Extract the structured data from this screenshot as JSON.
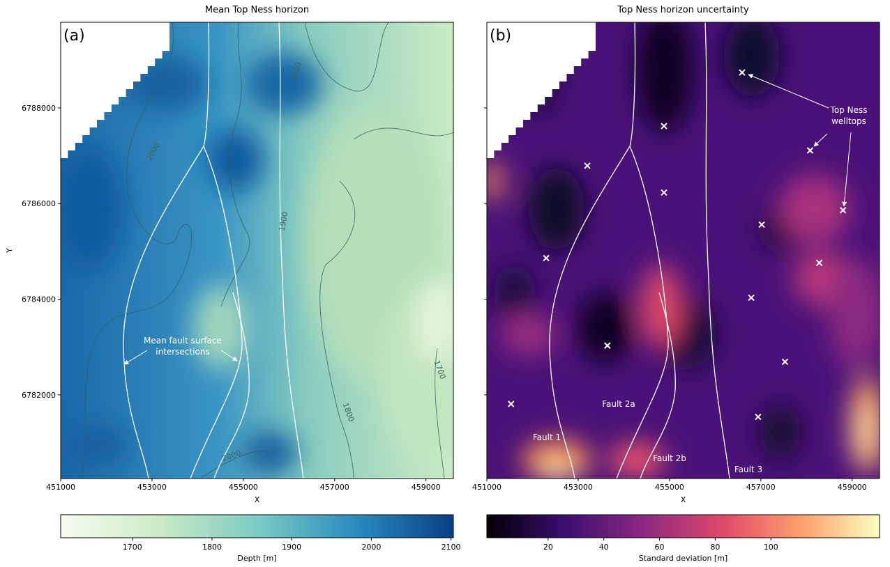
{
  "chart_data": [
    {
      "type": "heatmap",
      "title": "Mean Top Ness horizon",
      "panel_label": "(a)",
      "xlabel": "X",
      "ylabel": "Y",
      "xlim": [
        451000,
        459600
      ],
      "xticks": [
        451000,
        453000,
        455000,
        457000,
        459000
      ],
      "ylim": [
        6780250,
        6789790
      ],
      "yticks": [
        6782000,
        6784000,
        6786000,
        6788000
      ],
      "colorbar": {
        "label": "Depth [m]",
        "lim": [
          1610,
          2103
        ],
        "ticks": [
          1700,
          1800,
          1900,
          2000,
          2100
        ]
      },
      "contour_labels": [
        2000,
        2000,
        1900,
        2000,
        1800,
        1700
      ],
      "annotation": [
        "Mean fault surface",
        "intersections"
      ]
    },
    {
      "type": "heatmap",
      "title": "Top Ness horizon uncertainty",
      "panel_label": "(b)",
      "xlabel": "X",
      "xlim": [
        451000,
        459600
      ],
      "xticks": [
        451000,
        453000,
        455000,
        457000,
        459000
      ],
      "ylim": [
        6780250,
        6789790
      ],
      "yticks": [
        6782000,
        6784000,
        6786000,
        6788000
      ],
      "colorbar": {
        "label": "Standard deviation [m]",
        "lim": [
          -2,
          139
        ],
        "ticks": [
          20,
          40,
          60,
          80,
          100
        ]
      },
      "welltops": {
        "x": [
          456590,
          454880,
          453200,
          458080,
          454880,
          458800,
          457020,
          452300,
          458280,
          456790,
          453640,
          457530,
          451530,
          456940
        ],
        "y": [
          6788740,
          6787620,
          6786790,
          6787110,
          6786230,
          6785860,
          6785560,
          6784860,
          6784760,
          6784030,
          6783030,
          6782690,
          6781810,
          6781540
        ]
      },
      "annotation": [
        "Top Ness",
        "welltops"
      ],
      "fault_labels": [
        "Fault 1",
        "Fault 2a",
        "Fault 2b",
        "Fault 3"
      ]
    }
  ]
}
